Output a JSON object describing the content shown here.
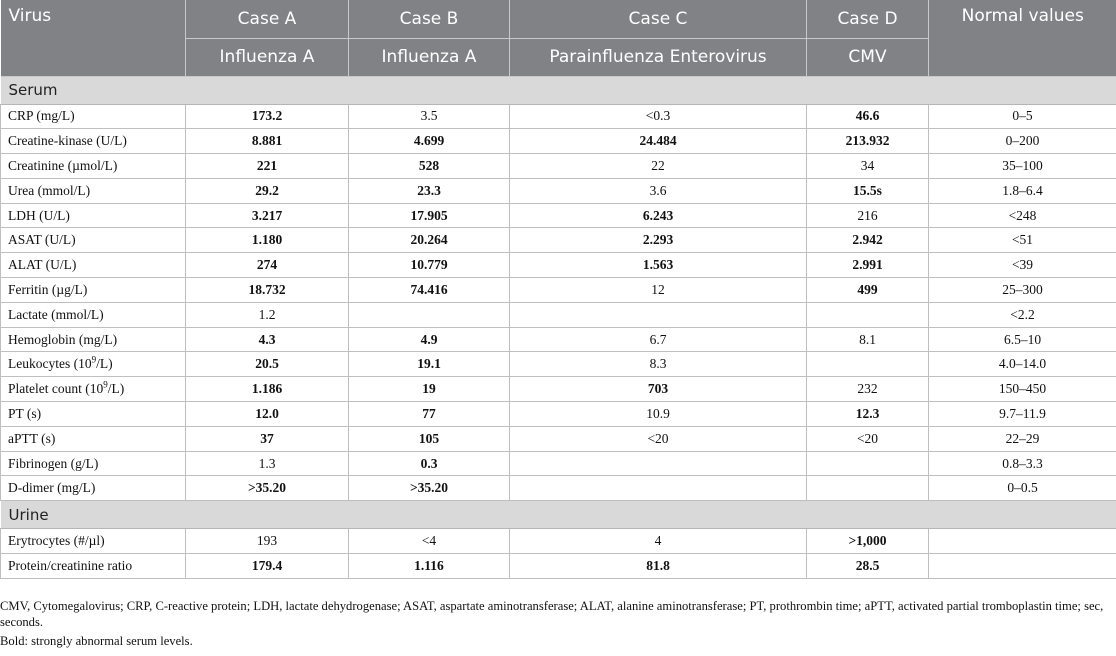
{
  "header": {
    "virus_label": "Virus",
    "cases": [
      {
        "name": "Case A",
        "virus": "Influenza A"
      },
      {
        "name": "Case B",
        "virus": "Influenza A"
      },
      {
        "name": "Case C",
        "virus": "Parainfluenza Enterovirus"
      },
      {
        "name": "Case D",
        "virus": "CMV"
      }
    ],
    "normal_label": "Normal values"
  },
  "sections": [
    {
      "title": "Serum",
      "rows": [
        {
          "label": "CRP (mg/L)",
          "values": [
            {
              "v": "173.2",
              "bold": true
            },
            {
              "v": "3.5",
              "bold": false
            },
            {
              "v": "<0.3",
              "bold": false
            },
            {
              "v": "46.6",
              "bold": true
            }
          ],
          "normal": "0–5"
        },
        {
          "label": "Creatine-kinase (U/L)",
          "values": [
            {
              "v": "8.881",
              "bold": true
            },
            {
              "v": "4.699",
              "bold": true
            },
            {
              "v": "24.484",
              "bold": true
            },
            {
              "v": "213.932",
              "bold": true
            }
          ],
          "normal": "0–200"
        },
        {
          "label": "Creatinine (µmol/L)",
          "values": [
            {
              "v": "221",
              "bold": true
            },
            {
              "v": "528",
              "bold": true
            },
            {
              "v": "22",
              "bold": false
            },
            {
              "v": "34",
              "bold": false
            }
          ],
          "normal": "35–100"
        },
        {
          "label": "Urea (mmol/L)",
          "values": [
            {
              "v": "29.2",
              "bold": true
            },
            {
              "v": "23.3",
              "bold": true
            },
            {
              "v": "3.6",
              "bold": false
            },
            {
              "v": "15.5s",
              "bold": true
            }
          ],
          "normal": "1.8–6.4"
        },
        {
          "label": "LDH (U/L)",
          "values": [
            {
              "v": "3.217",
              "bold": true
            },
            {
              "v": "17.905",
              "bold": true
            },
            {
              "v": "6.243",
              "bold": true
            },
            {
              "v": "216",
              "bold": false
            }
          ],
          "normal": "<248"
        },
        {
          "label": "ASAT (U/L)",
          "values": [
            {
              "v": "1.180",
              "bold": true
            },
            {
              "v": "20.264",
              "bold": true
            },
            {
              "v": "2.293",
              "bold": true
            },
            {
              "v": "2.942",
              "bold": true
            }
          ],
          "normal": "<51"
        },
        {
          "label": "ALAT (U/L)",
          "values": [
            {
              "v": "274",
              "bold": true
            },
            {
              "v": "10.779",
              "bold": true
            },
            {
              "v": "1.563",
              "bold": true
            },
            {
              "v": "2.991",
              "bold": true
            }
          ],
          "normal": "<39"
        },
        {
          "label": "Ferritin (µg/L)",
          "values": [
            {
              "v": "18.732",
              "bold": true
            },
            {
              "v": "74.416",
              "bold": true
            },
            {
              "v": "12",
              "bold": false
            },
            {
              "v": "499",
              "bold": true
            }
          ],
          "normal": "25–300"
        },
        {
          "label": "Lactate (mmol/L)",
          "values": [
            {
              "v": "1.2",
              "bold": false
            },
            {
              "v": "",
              "bold": false
            },
            {
              "v": "",
              "bold": false
            },
            {
              "v": "",
              "bold": false
            }
          ],
          "normal": "<2.2"
        },
        {
          "label": "Hemoglobin (mg/L)",
          "values": [
            {
              "v": "4.3",
              "bold": true
            },
            {
              "v": "4.9",
              "bold": true
            },
            {
              "v": "6.7",
              "bold": false
            },
            {
              "v": "8.1",
              "bold": false
            }
          ],
          "normal": "6.5–10"
        },
        {
          "label": "Leukocytes (10",
          "sup": "9",
          "label_tail": "/L)",
          "values": [
            {
              "v": "20.5",
              "bold": true
            },
            {
              "v": "19.1",
              "bold": true
            },
            {
              "v": "8.3",
              "bold": false
            },
            {
              "v": "",
              "bold": false
            }
          ],
          "normal": "4.0–14.0"
        },
        {
          "label": "Platelet count (10",
          "sup": "9",
          "label_tail": "/L)",
          "values": [
            {
              "v": "1.186",
              "bold": true
            },
            {
              "v": "19",
              "bold": true
            },
            {
              "v": "703",
              "bold": true
            },
            {
              "v": "232",
              "bold": false
            }
          ],
          "normal": "150–450"
        },
        {
          "label": "PT (s)",
          "values": [
            {
              "v": "12.0",
              "bold": true
            },
            {
              "v": "77",
              "bold": true
            },
            {
              "v": "10.9",
              "bold": false
            },
            {
              "v": "12.3",
              "bold": true
            }
          ],
          "normal": "9.7–11.9"
        },
        {
          "label": "aPTT (s)",
          "values": [
            {
              "v": "37",
              "bold": true
            },
            {
              "v": "105",
              "bold": true
            },
            {
              "v": "<20",
              "bold": false
            },
            {
              "v": "<20",
              "bold": false
            }
          ],
          "normal": "22–29"
        },
        {
          "label": "Fibrinogen (g/L)",
          "values": [
            {
              "v": "1.3",
              "bold": false
            },
            {
              "v": "0.3",
              "bold": true
            },
            {
              "v": "",
              "bold": false
            },
            {
              "v": "",
              "bold": false
            }
          ],
          "normal": "0.8–3.3"
        },
        {
          "label": "D-dimer (mg/L)",
          "values": [
            {
              "v": ">35.20",
              "bold": true
            },
            {
              "v": ">35.20",
              "bold": true
            },
            {
              "v": "",
              "bold": false
            },
            {
              "v": "",
              "bold": false
            }
          ],
          "normal": "0–0.5"
        }
      ]
    },
    {
      "title": "Urine",
      "rows": [
        {
          "label": "Erytrocytes (#/µl)",
          "values": [
            {
              "v": "193",
              "bold": false
            },
            {
              "v": "<4",
              "bold": false
            },
            {
              "v": "4",
              "bold": false
            },
            {
              "v": ">1,000",
              "bold": true
            }
          ],
          "normal": ""
        },
        {
          "label": "Protein/creatinine ratio",
          "values": [
            {
              "v": "179.4",
              "bold": true
            },
            {
              "v": "1.116",
              "bold": true
            },
            {
              "v": "81.8",
              "bold": true
            },
            {
              "v": "28.5",
              "bold": true
            }
          ],
          "normal": ""
        }
      ]
    }
  ],
  "footnote": {
    "abbreviations": "CMV, Cytomegalovirus; CRP, C-reactive protein; LDH, lactate dehydrogenase; ASAT, aspartate aminotransferase; ALAT, alanine aminotransferase; PT, prothrombin time; aPTT, activated partial tromboplastin time; sec, seconds.",
    "bold_note": "Bold: strongly abnormal serum levels."
  }
}
